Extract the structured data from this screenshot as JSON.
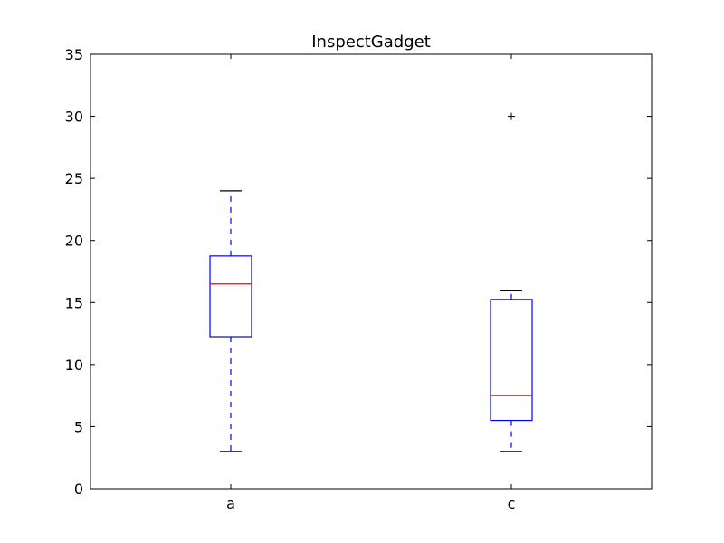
{
  "chart_data": {
    "type": "box",
    "title": "InspectGadget",
    "xlabel": "",
    "ylabel": "",
    "ylim": [
      0,
      35
    ],
    "yticks": [
      0,
      5,
      10,
      15,
      20,
      25,
      30,
      35
    ],
    "categories": [
      "a",
      "c"
    ],
    "boxes": [
      {
        "label": "a",
        "whisker_low": 3,
        "q1": 12.25,
        "median": 16.5,
        "q3": 18.75,
        "whisker_high": 24,
        "outliers": []
      },
      {
        "label": "c",
        "whisker_low": 3,
        "q1": 5.5,
        "median": 7.5,
        "q3": 15.25,
        "whisker_high": 16,
        "outliers": [
          30
        ]
      }
    ],
    "colors": {
      "box": "#0000ff",
      "median": "#ff0000",
      "whisker": "#0000ff",
      "cap": "#000000",
      "flier": "#000000"
    }
  }
}
